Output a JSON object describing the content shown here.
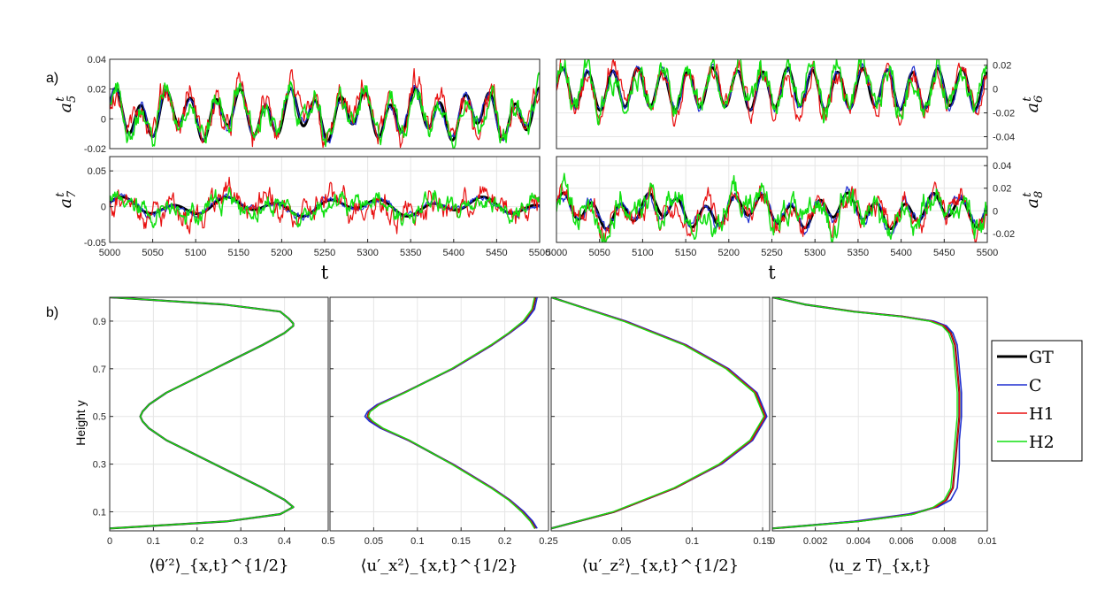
{
  "figure": {
    "panel_labels": [
      "a)",
      "b)"
    ]
  },
  "colors": {
    "GT": "#000000",
    "C": "#1f2fd0",
    "H1": "#e81010",
    "H2": "#11e011",
    "grid": "#e6e6e6",
    "axis": "#262626"
  },
  "legend": {
    "entries": [
      "GT",
      "C",
      "H1",
      "H2"
    ]
  },
  "chart_data": [
    {
      "type": "line",
      "name": "a5",
      "ylabel": "a^t_5",
      "xlabel": "",
      "xlim": [
        5000,
        5500
      ],
      "ylim": [
        -0.02,
        0.04
      ],
      "yticks": [
        -0.02,
        0,
        0.02,
        0.04
      ],
      "ytick_labels": [
        "-0.02",
        "0",
        "0.02",
        "0.04"
      ],
      "xticks": [],
      "signal": {
        "amp": 0.012,
        "period": 29,
        "offset": 0.003,
        "amp2": 0.006,
        "period2": 71
      },
      "series": [
        {
          "name": "GT",
          "width": 3.0,
          "noise": 0.0
        },
        {
          "name": "C",
          "width": 1.2,
          "noise": 0.002
        },
        {
          "name": "H1",
          "width": 1.2,
          "noise": 0.006
        },
        {
          "name": "H2",
          "width": 1.5,
          "noise": 0.005
        }
      ]
    },
    {
      "type": "line",
      "name": "a6",
      "ylabel": "a^t_6",
      "xlabel": "",
      "xlim": [
        5000,
        5500
      ],
      "ylim": [
        -0.05,
        0.025
      ],
      "yticks": [
        -0.04,
        -0.02,
        0,
        0.02
      ],
      "ytick_labels": [
        "-0.04",
        "-0.02",
        "0",
        "0.02"
      ],
      "xticks": [],
      "signal": {
        "amp": 0.016,
        "period": 29,
        "offset": 0.0,
        "amp2": 0.002,
        "period2": 90
      },
      "series": [
        {
          "name": "GT",
          "width": 3.0,
          "noise": 0.0
        },
        {
          "name": "C",
          "width": 1.2,
          "noise": 0.002
        },
        {
          "name": "H1",
          "width": 1.2,
          "noise": 0.006
        },
        {
          "name": "H2",
          "width": 1.5,
          "noise": 0.007
        }
      ]
    },
    {
      "type": "line",
      "name": "a7",
      "ylabel": "a^t_7",
      "xlabel": "t",
      "xlim": [
        5000,
        5500
      ],
      "ylim": [
        -0.05,
        0.07
      ],
      "yticks": [
        -0.05,
        0,
        0.05
      ],
      "ytick_labels": [
        "-0.05",
        "0",
        "0.05"
      ],
      "xticks": [
        5000,
        5050,
        5100,
        5150,
        5200,
        5250,
        5300,
        5350,
        5400,
        5450,
        5500
      ],
      "xtick_labels": [
        "5000",
        "5050",
        "5100",
        "5150",
        "5200",
        "5250",
        "5300",
        "5350",
        "5400",
        "5450",
        "5500"
      ],
      "signal": {
        "amp": 0.008,
        "period": 60,
        "offset": 0.0,
        "amp2": 0.006,
        "period2": 140
      },
      "series": [
        {
          "name": "GT",
          "width": 3.0,
          "noise": 0.0
        },
        {
          "name": "C",
          "width": 1.2,
          "noise": 0.003
        },
        {
          "name": "H1",
          "width": 1.2,
          "noise": 0.012
        },
        {
          "name": "H2",
          "width": 1.5,
          "noise": 0.009
        }
      ]
    },
    {
      "type": "line",
      "name": "a8",
      "ylabel": "a^t_8",
      "xlabel": "t",
      "xlim": [
        5000,
        5500
      ],
      "ylim": [
        -0.028,
        0.048
      ],
      "yticks": [
        -0.02,
        0,
        0.02,
        0.04
      ],
      "ytick_labels": [
        "-0.02",
        "0",
        "0.02",
        "0.04"
      ],
      "xticks": [
        5000,
        5050,
        5100,
        5150,
        5200,
        5250,
        5300,
        5350,
        5400,
        5450,
        5500
      ],
      "xtick_labels": [
        "5000",
        "5050",
        "5100",
        "5150",
        "5200",
        "5250",
        "5300",
        "5350",
        "5400",
        "5450",
        "5500"
      ],
      "signal": {
        "amp": 0.01,
        "period": 33,
        "offset": 0.0,
        "amp2": 0.006,
        "period2": 110
      },
      "series": [
        {
          "name": "GT",
          "width": 3.0,
          "noise": 0.0
        },
        {
          "name": "C",
          "width": 1.2,
          "noise": 0.003
        },
        {
          "name": "H1",
          "width": 1.2,
          "noise": 0.007
        },
        {
          "name": "H2",
          "width": 1.5,
          "noise": 0.008
        }
      ]
    },
    {
      "type": "line",
      "name": "theta-profile",
      "xlabel": "⟨θ′²⟩_{x,t}^{1/2}",
      "ylabel": "Height y",
      "xlim": [
        0,
        0.5
      ],
      "ylim": [
        0.02,
        1.0
      ],
      "xticks": [
        0,
        0.1,
        0.2,
        0.3,
        0.4,
        0.5
      ],
      "xtick_labels": [
        "0",
        "0.1",
        "0.2",
        "0.3",
        "0.4",
        "0.5"
      ],
      "yticks": [
        0.1,
        0.3,
        0.5,
        0.7,
        0.9
      ],
      "ytick_labels": [
        "0.1",
        "0.3",
        "0.5",
        "0.7",
        "0.9"
      ],
      "y": [
        0.03,
        0.06,
        0.09,
        0.11,
        0.12,
        0.15,
        0.2,
        0.3,
        0.4,
        0.45,
        0.48,
        0.5,
        0.52,
        0.55,
        0.6,
        0.7,
        0.8,
        0.85,
        0.88,
        0.89,
        0.91,
        0.94,
        0.97,
        1.0
      ],
      "series": [
        {
          "name": "GT",
          "x": [
            0.0,
            0.27,
            0.39,
            0.41,
            0.42,
            0.4,
            0.35,
            0.24,
            0.13,
            0.09,
            0.075,
            0.07,
            0.075,
            0.09,
            0.13,
            0.24,
            0.35,
            0.4,
            0.42,
            0.42,
            0.41,
            0.39,
            0.26,
            0.0
          ]
        },
        {
          "name": "C",
          "x": [
            0.0,
            0.27,
            0.39,
            0.41,
            0.42,
            0.4,
            0.35,
            0.24,
            0.13,
            0.09,
            0.075,
            0.07,
            0.075,
            0.09,
            0.13,
            0.24,
            0.35,
            0.4,
            0.42,
            0.42,
            0.41,
            0.39,
            0.26,
            0.0
          ]
        },
        {
          "name": "H1",
          "x": [
            0.0,
            0.27,
            0.39,
            0.41,
            0.42,
            0.4,
            0.35,
            0.24,
            0.13,
            0.09,
            0.075,
            0.07,
            0.075,
            0.09,
            0.13,
            0.24,
            0.35,
            0.4,
            0.42,
            0.42,
            0.41,
            0.39,
            0.26,
            0.0
          ]
        },
        {
          "name": "H2",
          "x": [
            0.0,
            0.27,
            0.39,
            0.41,
            0.42,
            0.4,
            0.35,
            0.24,
            0.13,
            0.09,
            0.075,
            0.07,
            0.075,
            0.09,
            0.13,
            0.24,
            0.35,
            0.4,
            0.42,
            0.42,
            0.41,
            0.39,
            0.26,
            0.0
          ]
        }
      ]
    },
    {
      "type": "line",
      "name": "ux-profile",
      "xlabel": "⟨u′_x²⟩_{x,t}^{1/2}",
      "ylabel": "",
      "xlim": [
        0.0,
        0.25
      ],
      "ylim": [
        0.02,
        1.0
      ],
      "xticks": [
        0.05,
        0.1,
        0.15,
        0.2,
        0.25
      ],
      "xtick_labels": [
        "0.05",
        "0.1",
        "0.15",
        "0.2",
        "0.25"
      ],
      "yticks": [
        0.1,
        0.3,
        0.5,
        0.7,
        0.9
      ],
      "ytick_labels": [],
      "y": [
        0.03,
        0.06,
        0.1,
        0.15,
        0.2,
        0.3,
        0.4,
        0.45,
        0.48,
        0.5,
        0.52,
        0.55,
        0.6,
        0.7,
        0.8,
        0.85,
        0.9,
        0.95,
        1.0
      ],
      "series": [
        {
          "name": "GT",
          "x": [
            0.235,
            0.23,
            0.22,
            0.205,
            0.185,
            0.14,
            0.09,
            0.06,
            0.048,
            0.043,
            0.045,
            0.056,
            0.085,
            0.14,
            0.185,
            0.205,
            0.222,
            0.232,
            0.235
          ]
        },
        {
          "name": "C",
          "x": [
            0.237,
            0.232,
            0.222,
            0.206,
            0.186,
            0.141,
            0.089,
            0.058,
            0.045,
            0.04,
            0.043,
            0.054,
            0.084,
            0.141,
            0.186,
            0.206,
            0.224,
            0.234,
            0.237
          ]
        },
        {
          "name": "H1",
          "x": [
            0.235,
            0.23,
            0.22,
            0.205,
            0.185,
            0.14,
            0.09,
            0.06,
            0.048,
            0.043,
            0.045,
            0.056,
            0.085,
            0.14,
            0.185,
            0.205,
            0.222,
            0.232,
            0.235
          ]
        },
        {
          "name": "H2",
          "x": [
            0.234,
            0.229,
            0.219,
            0.204,
            0.184,
            0.139,
            0.091,
            0.061,
            0.049,
            0.044,
            0.046,
            0.057,
            0.086,
            0.139,
            0.184,
            0.204,
            0.221,
            0.231,
            0.234
          ]
        }
      ]
    },
    {
      "type": "line",
      "name": "uz-profile",
      "xlabel": "⟨u′_z²⟩_{x,t}^{1/2}",
      "ylabel": "",
      "xlim": [
        0.0,
        0.155
      ],
      "ylim": [
        0.02,
        1.0
      ],
      "xticks": [
        0.05,
        0.1,
        0.15
      ],
      "xtick_labels": [
        "0.05",
        "0.1",
        "0.15"
      ],
      "yticks": [
        0.1,
        0.3,
        0.5,
        0.7,
        0.9
      ],
      "ytick_labels": [],
      "y": [
        0.03,
        0.1,
        0.2,
        0.3,
        0.4,
        0.5,
        0.6,
        0.7,
        0.8,
        0.9,
        1.0
      ],
      "series": [
        {
          "name": "GT",
          "x": [
            0.0,
            0.045,
            0.088,
            0.12,
            0.142,
            0.152,
            0.145,
            0.125,
            0.095,
            0.052,
            0.0
          ]
        },
        {
          "name": "C",
          "x": [
            0.0,
            0.045,
            0.088,
            0.121,
            0.143,
            0.153,
            0.146,
            0.126,
            0.096,
            0.053,
            0.0
          ]
        },
        {
          "name": "H1",
          "x": [
            0.0,
            0.045,
            0.088,
            0.12,
            0.142,
            0.152,
            0.145,
            0.125,
            0.095,
            0.052,
            0.0
          ]
        },
        {
          "name": "H2",
          "x": [
            0.0,
            0.044,
            0.087,
            0.119,
            0.141,
            0.151,
            0.144,
            0.124,
            0.094,
            0.051,
            0.0
          ]
        }
      ]
    },
    {
      "type": "line",
      "name": "uzT-profile",
      "xlabel": "⟨u_z T⟩_{x,t}",
      "ylabel": "",
      "xlim": [
        0,
        0.01
      ],
      "ylim": [
        0.02,
        1.0
      ],
      "xticks": [
        0,
        0.002,
        0.004,
        0.006,
        0.008,
        0.01
      ],
      "xtick_labels": [
        "0",
        "0.002",
        "0.004",
        "0.006",
        "0.008",
        "0.01"
      ],
      "yticks": [
        0.1,
        0.3,
        0.5,
        0.7,
        0.9
      ],
      "ytick_labels": [],
      "y": [
        0.03,
        0.06,
        0.09,
        0.12,
        0.15,
        0.2,
        0.3,
        0.4,
        0.5,
        0.6,
        0.7,
        0.8,
        0.85,
        0.88,
        0.9,
        0.92,
        0.94,
        0.97,
        1.0
      ],
      "series": [
        {
          "name": "GT",
          "x": [
            0.0,
            0.004,
            0.0065,
            0.0076,
            0.0081,
            0.0084,
            0.0085,
            0.0086,
            0.0087,
            0.0087,
            0.0086,
            0.0085,
            0.0083,
            0.008,
            0.0074,
            0.006,
            0.0038,
            0.0015,
            0.0
          ]
        },
        {
          "name": "C",
          "x": [
            0.0,
            0.0038,
            0.0063,
            0.0077,
            0.0083,
            0.0086,
            0.0087,
            0.0087,
            0.0088,
            0.0088,
            0.0087,
            0.0086,
            0.0084,
            0.0081,
            0.0075,
            0.006,
            0.0038,
            0.0015,
            0.0
          ]
        },
        {
          "name": "H1",
          "x": [
            0.0,
            0.004,
            0.0065,
            0.0076,
            0.0081,
            0.0084,
            0.0085,
            0.0086,
            0.0087,
            0.0087,
            0.0086,
            0.0085,
            0.0083,
            0.008,
            0.0074,
            0.006,
            0.0038,
            0.0015,
            0.0
          ]
        },
        {
          "name": "H2",
          "x": [
            0.0,
            0.0041,
            0.0066,
            0.0075,
            0.008,
            0.0083,
            0.0084,
            0.0085,
            0.0086,
            0.0086,
            0.0085,
            0.0084,
            0.0082,
            0.0079,
            0.0073,
            0.0059,
            0.0037,
            0.0015,
            0.0
          ]
        }
      ]
    }
  ]
}
